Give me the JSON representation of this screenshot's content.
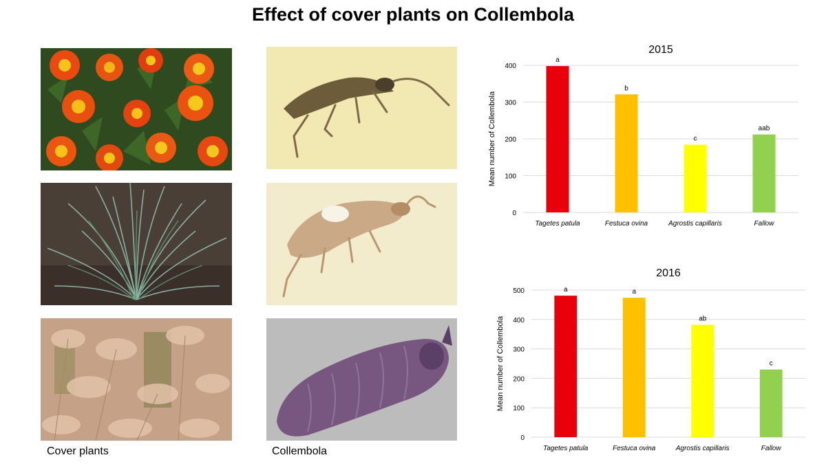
{
  "page": {
    "title": "Effect of cover plants on Collembola"
  },
  "photos": [
    {
      "name": "marigold-photo",
      "subject": "Tagetes patula flowers"
    },
    {
      "name": "grass-tuft-photo",
      "subject": "Festuca ovina tuft"
    },
    {
      "name": "grass-field-photo",
      "subject": "Agrostis capillaris field"
    },
    {
      "name": "springtail-photo-1",
      "subject": "springtail"
    },
    {
      "name": "springtail-photo-2",
      "subject": "springtail"
    },
    {
      "name": "springtail-photo-3",
      "subject": "springtail"
    }
  ],
  "captions": {
    "plants": "Cover plants",
    "collembola": "Collembola"
  },
  "chart_data": [
    {
      "type": "bar",
      "title": "2015",
      "ylabel": "Mean number of Collembola",
      "xlabel": "",
      "categories": [
        "Tagetes patula",
        "Festuca ovina",
        "Agrostis capillaris",
        "Fallow"
      ],
      "values": [
        398,
        321,
        184,
        212
      ],
      "letters": [
        "a",
        "b",
        "c",
        "aab"
      ],
      "colors": [
        "#e8000b",
        "#ffc000",
        "#ffff00",
        "#92d050"
      ],
      "ylim": [
        0,
        400
      ],
      "yticks": [
        0,
        100,
        200,
        300,
        400
      ],
      "grid": true,
      "legend": "none"
    },
    {
      "type": "bar",
      "title": "2016",
      "ylabel": "Mean number of Collembola",
      "xlabel": "",
      "categories": [
        "Tagetes patula",
        "Festuca ovina",
        "Agrostis capillaris",
        "Fallow"
      ],
      "values": [
        481,
        474,
        382,
        230
      ],
      "letters": [
        "a",
        "a",
        "ab",
        "c"
      ],
      "colors": [
        "#e8000b",
        "#ffc000",
        "#ffff00",
        "#92d050"
      ],
      "ylim": [
        0,
        500
      ],
      "yticks": [
        0,
        100,
        200,
        300,
        400,
        500
      ],
      "grid": true,
      "legend": "none"
    }
  ]
}
